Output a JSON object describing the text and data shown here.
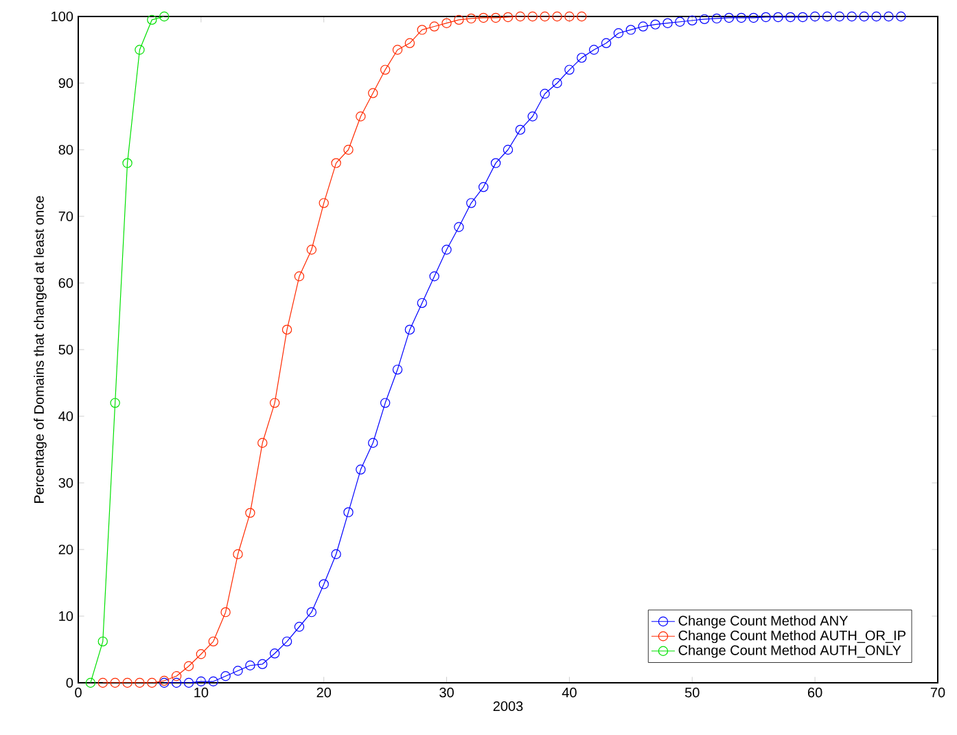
{
  "chart_data": {
    "type": "line",
    "xlabel": "2003",
    "ylabel": "Percentage of Domains that changed at least once",
    "xlim": [
      0,
      70
    ],
    "ylim": [
      0,
      100
    ],
    "xticks": [
      0,
      10,
      20,
      30,
      40,
      50,
      60,
      70
    ],
    "yticks": [
      0,
      10,
      20,
      30,
      40,
      50,
      60,
      70,
      80,
      90,
      100
    ],
    "marker": "circle",
    "line_style": "solid",
    "legend": "bottom right",
    "grid": false,
    "series": [
      {
        "name": "Change Count Method ANY",
        "color": "#0000ff",
        "x": [
          7,
          8,
          9,
          10,
          11,
          12,
          13,
          14,
          15,
          16,
          17,
          18,
          19,
          20,
          21,
          22,
          23,
          24,
          25,
          26,
          27,
          28,
          29,
          30,
          31,
          32,
          33,
          34,
          35,
          36,
          37,
          38,
          39,
          40,
          41,
          42,
          43,
          44,
          45,
          46,
          47,
          48,
          49,
          50,
          51,
          52,
          53,
          54,
          55,
          56,
          57,
          58,
          59,
          60,
          61,
          62,
          63,
          64,
          65,
          66,
          67
        ],
        "values": [
          0,
          0,
          0,
          0.2,
          0.2,
          1,
          1.8,
          2.6,
          2.8,
          4.4,
          6.2,
          8.4,
          10.6,
          14.8,
          19.3,
          25.6,
          32,
          36,
          42,
          47,
          53,
          57,
          61,
          65,
          68.4,
          72,
          74.4,
          78,
          80,
          83,
          85,
          88.4,
          90,
          92,
          93.8,
          95,
          96,
          97.5,
          98,
          98.5,
          98.8,
          99,
          99.2,
          99.4,
          99.6,
          99.7,
          99.8,
          99.8,
          99.8,
          99.9,
          99.9,
          99.9,
          99.9,
          100,
          100,
          100,
          100,
          100,
          100,
          100,
          100
        ]
      },
      {
        "name": "Change Count Method AUTH_OR_IP",
        "color": "#ff2a00",
        "x": [
          2,
          3,
          4,
          5,
          6,
          7,
          8,
          9,
          10,
          11,
          12,
          13,
          14,
          15,
          16,
          17,
          18,
          19,
          20,
          21,
          22,
          23,
          24,
          25,
          26,
          27,
          28,
          29,
          30,
          31,
          32,
          33,
          34,
          35,
          36,
          37,
          38,
          39,
          40,
          41
        ],
        "values": [
          0,
          0,
          0,
          0,
          0,
          0.3,
          1,
          2.5,
          4.3,
          6.2,
          10.6,
          19.3,
          25.5,
          36,
          42,
          53,
          61,
          65,
          72,
          78,
          80,
          85,
          88.5,
          92,
          95,
          96,
          98,
          98.5,
          99,
          99.5,
          99.7,
          99.8,
          99.8,
          99.9,
          100,
          100,
          100,
          100,
          100,
          100
        ]
      },
      {
        "name": "Change Count Method AUTH_ONLY",
        "color": "#00e000",
        "x": [
          1,
          2,
          3,
          4,
          5,
          6,
          7
        ],
        "values": [
          0,
          6.2,
          42,
          78,
          95,
          99.5,
          100
        ]
      }
    ]
  }
}
